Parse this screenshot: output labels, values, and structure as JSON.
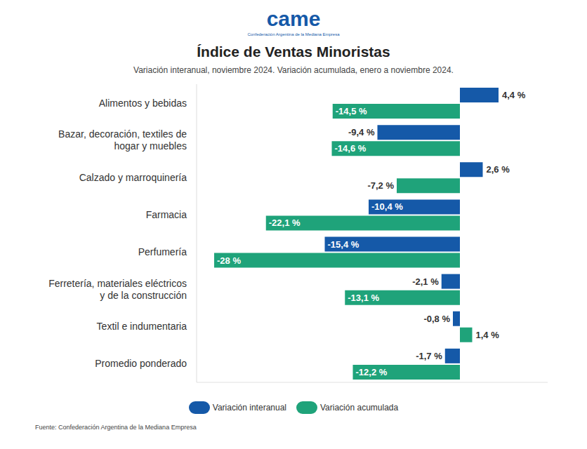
{
  "chart_data": {
    "type": "bar",
    "orientation": "horizontal",
    "title": "Índice de Ventas Minoristas",
    "subtitle": "Variación interanual, noviembre 2024. Variación acumulada, enero a noviembre 2024.",
    "annotations": [
      "came",
      "Confederación Argentina de la Mediana Empresa",
      "Fuente: Confederación Argentina de la Mediana Empresa"
    ],
    "categories": [
      "Alimentos y bebidas",
      "Bazar, decoración, textiles de\nhogar y muebles",
      "Calzado y marroquinería",
      "Farmacia",
      "Perfumería",
      "Ferretería, materiales eléctricos\ny de la construcción",
      "Textil e indumentaria",
      "Promedio ponderado"
    ],
    "series": [
      {
        "name": "Variación interanual",
        "color": "#1559a8",
        "values": [
          4.4,
          -9.4,
          2.6,
          -10.4,
          -15.4,
          -2.1,
          -0.8,
          -1.7
        ],
        "value_labels": [
          "4,4 %",
          "-9,4 %",
          "2,6 %",
          "-10,4 %",
          "-15,4 %",
          "-2,1 %",
          "-0,8 %",
          "-1,7 %"
        ]
      },
      {
        "name": "Variación acumulada",
        "color": "#1fa37a",
        "values": [
          -14.5,
          -14.6,
          -7.2,
          -22.1,
          -28,
          -13.1,
          1.4,
          -12.2
        ],
        "value_labels": [
          "-14,5 %",
          "-14,6 %",
          "-7,2 %",
          "-22,1 %",
          "-28 %",
          "-13,1 %",
          "1,4 %",
          "-12,2 %"
        ]
      }
    ],
    "xlim": [
      -30,
      10
    ],
    "data_labels": true,
    "tick_labels": "y",
    "legend": "bottom",
    "grid": false
  }
}
